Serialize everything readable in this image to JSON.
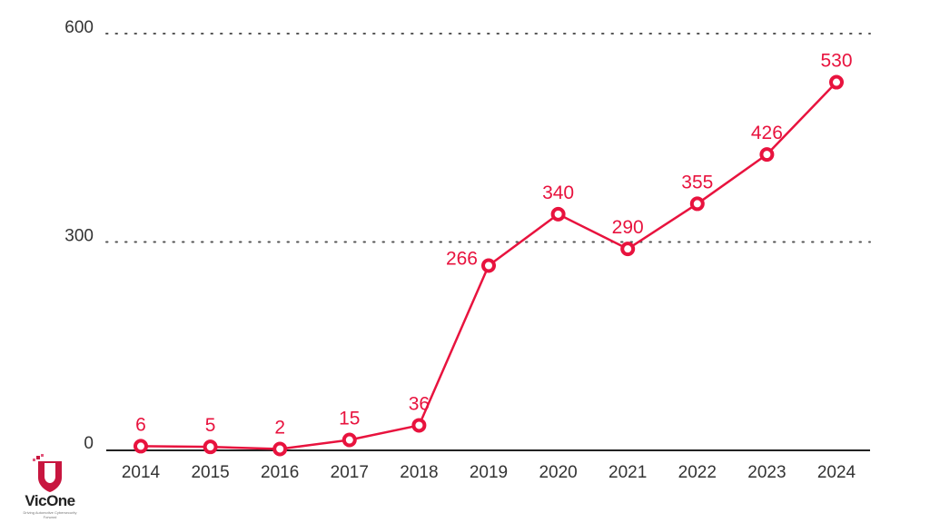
{
  "chart_data": {
    "type": "line",
    "x": [
      "2014",
      "2015",
      "2016",
      "2017",
      "2018",
      "2019",
      "2020",
      "2021",
      "2022",
      "2023",
      "2024"
    ],
    "series": [
      {
        "values": [
          6,
          5,
          2,
          15,
          36,
          266,
          340,
          290,
          355,
          426,
          530
        ]
      }
    ],
    "yticks": [
      "0",
      "300",
      "600"
    ],
    "ylim": [
      0,
      600
    ],
    "grid": "horizontal dotted",
    "color": "#e8133e",
    "data_labels": true
  },
  "logo": {
    "name": "VicOne",
    "tagline": "Driving Automotive Cybersecurity Forward"
  }
}
